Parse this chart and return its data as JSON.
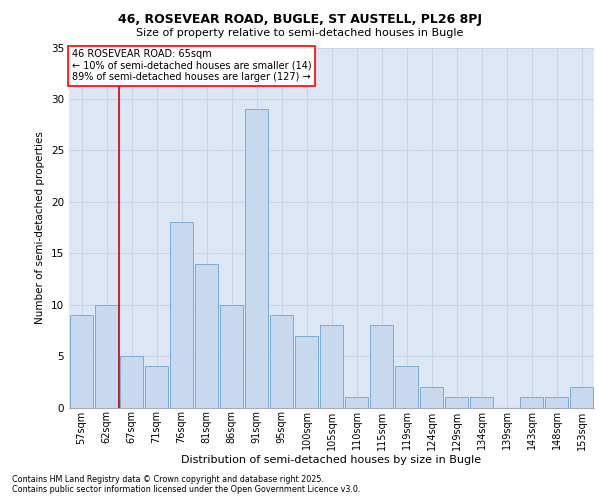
{
  "title1": "46, ROSEVEAR ROAD, BUGLE, ST AUSTELL, PL26 8PJ",
  "title2": "Size of property relative to semi-detached houses in Bugle",
  "xlabel": "Distribution of semi-detached houses by size in Bugle",
  "ylabel": "Number of semi-detached properties",
  "categories": [
    "57sqm",
    "62sqm",
    "67sqm",
    "71sqm",
    "76sqm",
    "81sqm",
    "86sqm",
    "91sqm",
    "95sqm",
    "100sqm",
    "105sqm",
    "110sqm",
    "115sqm",
    "119sqm",
    "124sqm",
    "129sqm",
    "134sqm",
    "139sqm",
    "143sqm",
    "148sqm",
    "153sqm"
  ],
  "values": [
    9,
    10,
    5,
    4,
    18,
    14,
    10,
    29,
    9,
    7,
    8,
    1,
    8,
    4,
    2,
    1,
    1,
    0,
    1,
    1,
    2
  ],
  "bar_color": "#c8d9ef",
  "bar_edge_color": "#7aadd4",
  "grid_color": "#c8d4e8",
  "background_color": "#dde6f5",
  "red_line_x": 1.5,
  "annotation_title": "46 ROSEVEAR ROAD: 65sqm",
  "annotation_line1": "← 10% of semi-detached houses are smaller (14)",
  "annotation_line2": "89% of semi-detached houses are larger (127) →",
  "footnote1": "Contains HM Land Registry data © Crown copyright and database right 2025.",
  "footnote2": "Contains public sector information licensed under the Open Government Licence v3.0.",
  "ylim": [
    0,
    35
  ],
  "yticks": [
    0,
    5,
    10,
    15,
    20,
    25,
    30,
    35
  ]
}
